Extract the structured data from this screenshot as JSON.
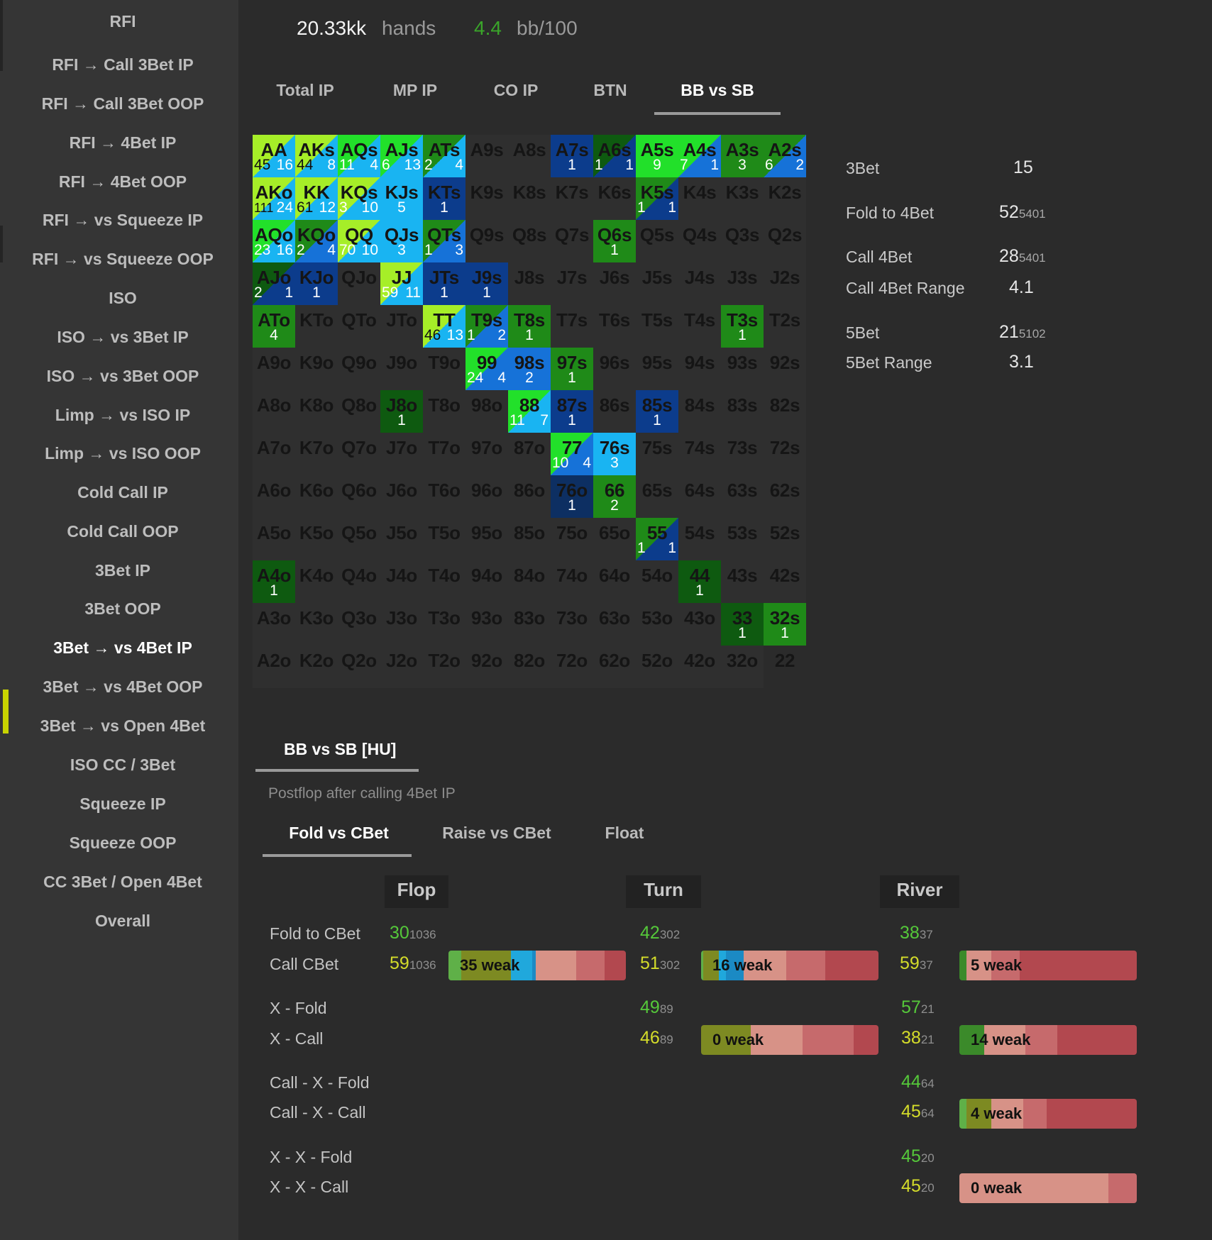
{
  "sidebar": {
    "items": [
      "RFI",
      "RFI → Call 3Bet IP",
      "RFI → Call 3Bet OOP",
      "RFI → 4Bet IP",
      "RFI → 4Bet OOP",
      "RFI → vs Squeeze IP",
      "RFI → vs Squeeze OOP",
      "ISO",
      "ISO → vs 3Bet IP",
      "ISO → vs 3Bet OOP",
      "Limp → vs ISO IP",
      "Limp → vs ISO OOP",
      "Cold Call IP",
      "Cold Call OOP",
      "3Bet IP",
      "3Bet OOP",
      "3Bet → vs 4Bet IP",
      "3Bet → vs 4Bet OOP",
      "3Bet → vs Open 4Bet",
      "ISO CC / 3Bet",
      "Squeeze IP",
      "Squeeze OOP",
      "CC 3Bet / Open 4Bet",
      "Overall"
    ],
    "active_index": 16,
    "marker_color": "#c8d400"
  },
  "header": {
    "hands_value": "20.33kk",
    "hands_label": "hands",
    "winrate_value": "4.4",
    "winrate_label": "bb/100",
    "winrate_color": "#3aa52a"
  },
  "position_tabs": [
    "Total IP",
    "MP IP",
    "CO IP",
    "BTN",
    "BB vs SB"
  ],
  "position_tabs_active": 4,
  "colors": {
    "dark_green": "#0e5a10",
    "mid_green": "#1f8a18",
    "bright_green": "#22e02a",
    "yellow_green": "#a6ee28",
    "light_blue": "#19b4f2",
    "mid_blue": "#1672d8",
    "navy": "#0c3c8c",
    "dark_navy": "#0d2f62",
    "empty_cell": "#2f2f2f",
    "light_gray_cell": "#383838"
  },
  "grid": [
    [
      {
        "l": "AA",
        "bg": "#19b4f2",
        "tri": "#a6ee28",
        "n": [
          "45",
          "16"
        ],
        "nd": true
      },
      {
        "l": "AKs",
        "bg": "#19b4f2",
        "tri": "#a6ee28",
        "n": [
          "44",
          "8"
        ],
        "nd": true
      },
      {
        "l": "AQs",
        "bg": "#19b4f2",
        "tri": "#22e02a",
        "n": [
          "11",
          "4"
        ]
      },
      {
        "l": "AJs",
        "bg": "#19b4f2",
        "tri": "#22e02a",
        "n": [
          "6",
          "13"
        ]
      },
      {
        "l": "ATs",
        "bg": "#19b4f2",
        "tri": "#1f8a18",
        "n": [
          "2",
          "4"
        ]
      },
      {
        "l": "A9s"
      },
      {
        "l": "A8s"
      },
      {
        "l": "A7s",
        "bg": "#0c3c8c",
        "n": [
          "1"
        ]
      },
      {
        "l": "A6s",
        "bg": "#0c3c8c",
        "tri": "#0e5a10",
        "n": [
          "1",
          "1"
        ]
      },
      {
        "l": "A5s",
        "bg": "#22e02a",
        "n": [
          "9"
        ]
      },
      {
        "l": "A4s",
        "bg": "#1672d8",
        "tri": "#22e02a",
        "n": [
          "7",
          "1"
        ]
      },
      {
        "l": "A3s",
        "bg": "#1f8a18",
        "n": [
          "3"
        ]
      },
      {
        "l": "A2s",
        "bg": "#1672d8",
        "tri": "#1f8a18",
        "n": [
          "6",
          "2"
        ]
      }
    ],
    [
      {
        "l": "AKo",
        "bg": "#19b4f2",
        "tri": "#a6ee28",
        "n": [
          "111",
          "24"
        ],
        "nd": true
      },
      {
        "l": "KK",
        "bg": "#19b4f2",
        "tri": "#a6ee28",
        "n": [
          "61",
          "12"
        ],
        "nd": true
      },
      {
        "l": "KQs",
        "bg": "#19b4f2",
        "tri": "#a6ee28",
        "n": [
          "3",
          "10"
        ]
      },
      {
        "l": "KJs",
        "bg": "#19b4f2",
        "n": [
          "5"
        ]
      },
      {
        "l": "KTs",
        "bg": "#0c3c8c",
        "n": [
          "1"
        ]
      },
      {
        "l": "K9s"
      },
      {
        "l": "K8s"
      },
      {
        "l": "K7s"
      },
      {
        "l": "K6s"
      },
      {
        "l": "K5s",
        "bg": "#0c3c8c",
        "tri": "#1f8a18",
        "n": [
          "1",
          "1"
        ]
      },
      {
        "l": "K4s"
      },
      {
        "l": "K3s"
      },
      {
        "l": "K2s"
      }
    ],
    [
      {
        "l": "AQo",
        "bg": "#19b4f2",
        "tri": "#22e02a",
        "n": [
          "23",
          "16"
        ]
      },
      {
        "l": "KQo",
        "bg": "#1672d8",
        "tri": "#1f8a18",
        "n": [
          "2",
          "4"
        ]
      },
      {
        "l": "QQ",
        "bg": "#19b4f2",
        "tri": "#a6ee28",
        "n": [
          "70",
          "10"
        ]
      },
      {
        "l": "QJs",
        "bg": "#19b4f2",
        "n": [
          "3"
        ]
      },
      {
        "l": "QTs",
        "bg": "#1672d8",
        "tri": "#1f8a18",
        "n": [
          "1",
          "3"
        ]
      },
      {
        "l": "Q9s"
      },
      {
        "l": "Q8s"
      },
      {
        "l": "Q7s"
      },
      {
        "l": "Q6s",
        "bg": "#1f8a18",
        "n": [
          "1"
        ]
      },
      {
        "l": "Q5s"
      },
      {
        "l": "Q4s"
      },
      {
        "l": "Q3s"
      },
      {
        "l": "Q2s"
      }
    ],
    [
      {
        "l": "AJo",
        "bg": "#0c3c8c",
        "tri": "#0e5a10",
        "n": [
          "2",
          "1"
        ]
      },
      {
        "l": "KJo",
        "bg": "#0c3c8c",
        "n": [
          "1"
        ]
      },
      {
        "l": "QJo"
      },
      {
        "l": "JJ",
        "bg": "#19b4f2",
        "tri": "#a6ee28",
        "n": [
          "59",
          "11"
        ]
      },
      {
        "l": "JTs",
        "bg": "#0c3c8c",
        "n": [
          "1"
        ]
      },
      {
        "l": "J9s",
        "bg": "#0c3c8c",
        "n": [
          "1"
        ]
      },
      {
        "l": "J8s"
      },
      {
        "l": "J7s"
      },
      {
        "l": "J6s"
      },
      {
        "l": "J5s"
      },
      {
        "l": "J4s"
      },
      {
        "l": "J3s"
      },
      {
        "l": "J2s"
      }
    ],
    [
      {
        "l": "ATo",
        "bg": "#1f8a18",
        "n": [
          "4"
        ]
      },
      {
        "l": "KTo"
      },
      {
        "l": "QTo"
      },
      {
        "l": "JTo"
      },
      {
        "l": "TT",
        "bg": "#19b4f2",
        "tri": "#a6ee28",
        "n": [
          "46",
          "13"
        ],
        "nd": true
      },
      {
        "l": "T9s",
        "bg": "#1672d8",
        "tri": "#1f8a18",
        "n": [
          "1",
          "2"
        ]
      },
      {
        "l": "T8s",
        "bg": "#1f8a18",
        "n": [
          "1"
        ]
      },
      {
        "l": "T7s"
      },
      {
        "l": "T6s"
      },
      {
        "l": "T5s"
      },
      {
        "l": "T4s"
      },
      {
        "l": "T3s",
        "bg": "#1f8a18",
        "n": [
          "1"
        ]
      },
      {
        "l": "T2s"
      }
    ],
    [
      {
        "l": "A9o"
      },
      {
        "l": "K9o"
      },
      {
        "l": "Q9o"
      },
      {
        "l": "J9o"
      },
      {
        "l": "T9o"
      },
      {
        "l": "99",
        "bg": "#1672d8",
        "tri": "#22e02a",
        "n": [
          "24",
          "4"
        ]
      },
      {
        "l": "98s",
        "bg": "#1672d8",
        "n": [
          "2"
        ]
      },
      {
        "l": "97s",
        "bg": "#1f8a18",
        "n": [
          "1"
        ]
      },
      {
        "l": "96s"
      },
      {
        "l": "95s"
      },
      {
        "l": "94s"
      },
      {
        "l": "93s"
      },
      {
        "l": "92s"
      }
    ],
    [
      {
        "l": "A8o"
      },
      {
        "l": "K8o"
      },
      {
        "l": "Q8o"
      },
      {
        "l": "J8o",
        "bg": "#0e5a10",
        "n": [
          "1"
        ]
      },
      {
        "l": "T8o"
      },
      {
        "l": "98o"
      },
      {
        "l": "88",
        "bg": "#19b4f2",
        "tri": "#22e02a",
        "n": [
          "11",
          "7"
        ]
      },
      {
        "l": "87s",
        "bg": "#0c3c8c",
        "n": [
          "1"
        ]
      },
      {
        "l": "86s"
      },
      {
        "l": "85s",
        "bg": "#0c3c8c",
        "n": [
          "1"
        ]
      },
      {
        "l": "84s"
      },
      {
        "l": "83s"
      },
      {
        "l": "82s"
      }
    ],
    [
      {
        "l": "A7o"
      },
      {
        "l": "K7o"
      },
      {
        "l": "Q7o"
      },
      {
        "l": "J7o"
      },
      {
        "l": "T7o"
      },
      {
        "l": "97o"
      },
      {
        "l": "87o"
      },
      {
        "l": "77",
        "bg": "#1672d8",
        "tri": "#22e02a",
        "n": [
          "10",
          "4"
        ]
      },
      {
        "l": "76s",
        "bg": "#19b4f2",
        "n": [
          "3"
        ]
      },
      {
        "l": "75s"
      },
      {
        "l": "74s"
      },
      {
        "l": "73s"
      },
      {
        "l": "72s"
      }
    ],
    [
      {
        "l": "A6o"
      },
      {
        "l": "K6o"
      },
      {
        "l": "Q6o"
      },
      {
        "l": "J6o"
      },
      {
        "l": "T6o"
      },
      {
        "l": "96o"
      },
      {
        "l": "86o"
      },
      {
        "l": "76o",
        "bg": "#0d2f62",
        "n": [
          "1"
        ]
      },
      {
        "l": "66",
        "bg": "#1f8a18",
        "n": [
          "2"
        ]
      },
      {
        "l": "65s"
      },
      {
        "l": "64s"
      },
      {
        "l": "63s"
      },
      {
        "l": "62s"
      }
    ],
    [
      {
        "l": "A5o"
      },
      {
        "l": "K5o"
      },
      {
        "l": "Q5o"
      },
      {
        "l": "J5o"
      },
      {
        "l": "T5o"
      },
      {
        "l": "95o"
      },
      {
        "l": "85o"
      },
      {
        "l": "75o"
      },
      {
        "l": "65o"
      },
      {
        "l": "55",
        "bg": "#0c3c8c",
        "tri": "#1f8a18",
        "n": [
          "1",
          "1"
        ]
      },
      {
        "l": "54s"
      },
      {
        "l": "53s"
      },
      {
        "l": "52s"
      }
    ],
    [
      {
        "l": "A4o",
        "bg": "#0e5a10",
        "n": [
          "1"
        ]
      },
      {
        "l": "K4o"
      },
      {
        "l": "Q4o"
      },
      {
        "l": "J4o"
      },
      {
        "l": "T4o"
      },
      {
        "l": "94o"
      },
      {
        "l": "84o"
      },
      {
        "l": "74o"
      },
      {
        "l": "64o"
      },
      {
        "l": "54o"
      },
      {
        "l": "44",
        "bg": "#0e5a10",
        "n": [
          "1"
        ]
      },
      {
        "l": "43s"
      },
      {
        "l": "42s"
      }
    ],
    [
      {
        "l": "A3o"
      },
      {
        "l": "K3o"
      },
      {
        "l": "Q3o"
      },
      {
        "l": "J3o"
      },
      {
        "l": "T3o"
      },
      {
        "l": "93o"
      },
      {
        "l": "83o"
      },
      {
        "l": "73o"
      },
      {
        "l": "63o"
      },
      {
        "l": "53o"
      },
      {
        "l": "43o"
      },
      {
        "l": "33",
        "bg": "#0e5a10",
        "n": [
          "1"
        ]
      },
      {
        "l": "32s",
        "bg": "#1f8a18",
        "n": [
          "1"
        ]
      }
    ],
    [
      {
        "l": "A2o"
      },
      {
        "l": "K2o"
      },
      {
        "l": "Q2o"
      },
      {
        "l": "J2o"
      },
      {
        "l": "T2o"
      },
      {
        "l": "92o"
      },
      {
        "l": "82o"
      },
      {
        "l": "72o"
      },
      {
        "l": "62o"
      },
      {
        "l": "52o"
      },
      {
        "l": "42o"
      },
      {
        "l": "32o"
      },
      {
        "l": "22",
        "bg": "#2b2b2b"
      }
    ]
  ],
  "stats": {
    "threebet_label": "3Bet",
    "threebet_value": "15",
    "fold4_label": "Fold to 4Bet",
    "fold4_value": "52",
    "fold4_count": "5401",
    "call4_label": "Call 4Bet",
    "call4_value": "28",
    "call4_count": "5401",
    "call4range_label": "Call 4Bet Range",
    "call4range_value": "4.1",
    "fivebet_label": "5Bet",
    "fivebet_value": "21",
    "fivebet_count": "5102",
    "fivebetrange_label": "5Bet Range",
    "fivebetrange_value": "3.1"
  },
  "postflop": {
    "section_tab": "BB vs SB [HU]",
    "note": "Postflop after calling 4Bet IP",
    "tabs": [
      "Fold vs CBet",
      "Raise vs CBet",
      "Float"
    ],
    "tabs_active": 0,
    "streets": [
      "Flop",
      "Turn",
      "River"
    ],
    "row_labels": [
      "Fold to CBet",
      "Call CBet",
      "X - Fold",
      "X - Call",
      "Call - X - Fold",
      "Call - X - Call",
      "X - X - Fold",
      "X - X - Call"
    ],
    "cells": [
      {
        "street": 0,
        "row": 0,
        "v": "30",
        "c": "1036",
        "col": "green"
      },
      {
        "street": 0,
        "row": 1,
        "v": "59",
        "c": "1036",
        "col": "yellow"
      },
      {
        "street": 1,
        "row": 0,
        "v": "42",
        "c": "302",
        "col": "green"
      },
      {
        "street": 1,
        "row": 1,
        "v": "51",
        "c": "302",
        "col": "yellow"
      },
      {
        "street": 1,
        "row": 2,
        "v": "49",
        "c": "89",
        "col": "green"
      },
      {
        "street": 1,
        "row": 3,
        "v": "46",
        "c": "89",
        "col": "yellow"
      },
      {
        "street": 2,
        "row": 0,
        "v": "38",
        "c": "37",
        "col": "green"
      },
      {
        "street": 2,
        "row": 1,
        "v": "59",
        "c": "37",
        "col": "yellow"
      },
      {
        "street": 2,
        "row": 2,
        "v": "57",
        "c": "21",
        "col": "green"
      },
      {
        "street": 2,
        "row": 3,
        "v": "38",
        "c": "21",
        "col": "yellow"
      },
      {
        "street": 2,
        "row": 4,
        "v": "44",
        "c": "64",
        "col": "green"
      },
      {
        "street": 2,
        "row": 5,
        "v": "45",
        "c": "64",
        "col": "yellow"
      },
      {
        "street": 2,
        "row": 6,
        "v": "45",
        "c": "20",
        "col": "green"
      },
      {
        "street": 2,
        "row": 7,
        "v": "45",
        "c": "20",
        "col": "yellow"
      }
    ],
    "bars": [
      {
        "street": 0,
        "row": 1,
        "label": "35 weak",
        "segs": [
          [
            "#5fb048",
            0.07
          ],
          [
            "#7d8a22",
            0.28
          ],
          [
            "#20a8dc",
            0.12
          ],
          [
            "#1b8ac4",
            0.02
          ],
          [
            "#d79287",
            0.23
          ],
          [
            "#c66a6c",
            0.16
          ],
          [
            "#b2484f",
            0.12
          ]
        ]
      },
      {
        "street": 1,
        "row": 1,
        "label": "16 weak",
        "segs": [
          [
            "#5fb048",
            0.01
          ],
          [
            "#7d8a22",
            0.09
          ],
          [
            "#20a8dc",
            0.04
          ],
          [
            "#1b8ac4",
            0.1
          ],
          [
            "#d79287",
            0.24
          ],
          [
            "#c66a6c",
            0.22
          ],
          [
            "#b2484f",
            0.3
          ]
        ]
      },
      {
        "street": 1,
        "row": 3,
        "label": "0 weak",
        "segs": [
          [
            "#7d8a22",
            0.28
          ],
          [
            "#d79287",
            0.29
          ],
          [
            "#c66a6c",
            0.29
          ],
          [
            "#b2484f",
            0.14
          ]
        ]
      },
      {
        "street": 2,
        "row": 1,
        "label": "5 weak",
        "segs": [
          [
            "#3b8a2a",
            0.04
          ],
          [
            "#d79287",
            0.14
          ],
          [
            "#c66a6c",
            0.16
          ],
          [
            "#b2484f",
            0.66
          ]
        ]
      },
      {
        "street": 2,
        "row": 3,
        "label": "14 weak",
        "segs": [
          [
            "#3b8a2a",
            0.14
          ],
          [
            "#d79287",
            0.23
          ],
          [
            "#c66a6c",
            0.18
          ],
          [
            "#b2484f",
            0.45
          ]
        ]
      },
      {
        "street": 2,
        "row": 5,
        "label": "4 weak",
        "segs": [
          [
            "#5fb048",
            0.04
          ],
          [
            "#7d8a22",
            0.14
          ],
          [
            "#d79287",
            0.18
          ],
          [
            "#c66a6c",
            0.13
          ],
          [
            "#b2484f",
            0.51
          ]
        ]
      },
      {
        "street": 2,
        "row": 7,
        "label": "0 weak",
        "segs": [
          [
            "#d79287",
            0.84
          ],
          [
            "#c66a6c",
            0.16
          ]
        ]
      }
    ]
  }
}
